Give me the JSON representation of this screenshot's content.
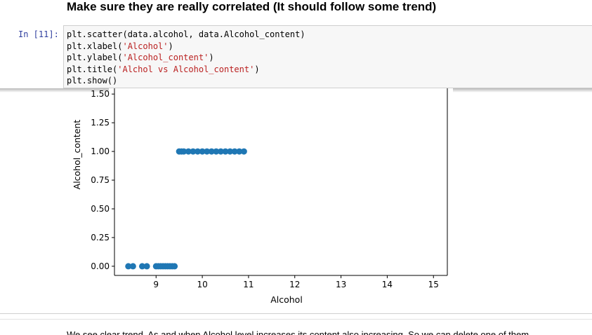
{
  "heading": "Make sure they are really correlated (It should follow some trend)",
  "cell": {
    "prompt": "In [11]:",
    "code_lines": [
      [
        {
          "t": "plt.scatter(data.alcohol, data.Alcohol_content)",
          "c": "plain"
        }
      ],
      [
        {
          "t": "plt.xlabel(",
          "c": "plain"
        },
        {
          "t": "'Alcohol'",
          "c": "str"
        },
        {
          "t": ")",
          "c": "plain"
        }
      ],
      [
        {
          "t": "plt.ylabel(",
          "c": "plain"
        },
        {
          "t": "'Alcohol_content'",
          "c": "str"
        },
        {
          "t": ")",
          "c": "plain"
        }
      ],
      [
        {
          "t": "plt.title(",
          "c": "plain"
        },
        {
          "t": "'Alchol vs Alcohol_content'",
          "c": "str"
        },
        {
          "t": ")",
          "c": "plain"
        }
      ],
      [
        {
          "t": "plt.show()",
          "c": "plain"
        }
      ]
    ]
  },
  "chart_data": {
    "type": "scatter",
    "xlabel": "Alcohol",
    "ylabel": "Alcohol_content",
    "xlim": [
      8.1,
      15.3
    ],
    "ylim": [
      -0.08,
      1.55
    ],
    "x_ticks": [
      9,
      10,
      11,
      12,
      13,
      14,
      15
    ],
    "y_ticks": [
      0.0,
      0.25,
      0.5,
      0.75,
      1.0,
      1.25,
      1.5
    ],
    "y_tick_labels": [
      "0.00",
      "0.25",
      "0.50",
      "0.75",
      "1.00",
      "1.25",
      "1.50"
    ],
    "point_color": "#1f77b4",
    "points": [
      [
        8.4,
        0
      ],
      [
        8.5,
        0
      ],
      [
        8.7,
        0
      ],
      [
        8.8,
        0
      ],
      [
        9.0,
        0
      ],
      [
        9.05,
        0
      ],
      [
        9.1,
        0
      ],
      [
        9.15,
        0
      ],
      [
        9.2,
        0
      ],
      [
        9.25,
        0
      ],
      [
        9.3,
        0
      ],
      [
        9.35,
        0
      ],
      [
        9.4,
        0
      ],
      [
        9.5,
        1
      ],
      [
        9.55,
        1
      ],
      [
        9.6,
        1
      ],
      [
        9.7,
        1
      ],
      [
        9.8,
        1
      ],
      [
        9.9,
        1
      ],
      [
        10.0,
        1
      ],
      [
        10.1,
        1
      ],
      [
        10.2,
        1
      ],
      [
        10.3,
        1
      ],
      [
        10.4,
        1
      ],
      [
        10.5,
        1
      ],
      [
        10.6,
        1
      ],
      [
        10.7,
        1
      ],
      [
        10.8,
        1
      ],
      [
        10.9,
        1
      ]
    ],
    "grid": false
  },
  "bottom_text": "We see clear trend. As and when Alcohol level increases its content also increasing. So we can delete one of them"
}
